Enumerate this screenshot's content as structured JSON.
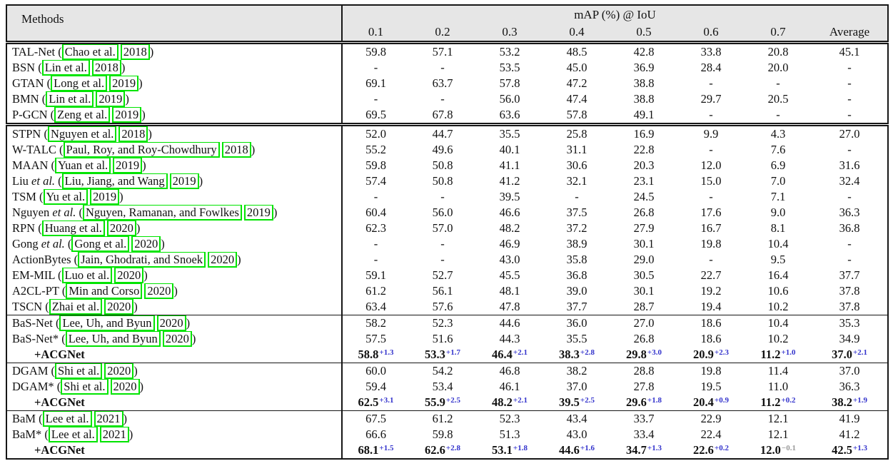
{
  "table": {
    "methods_label": "Methods",
    "group_header": "mAP (%) @ IoU",
    "columns": [
      "0.1",
      "0.2",
      "0.3",
      "0.4",
      "0.5",
      "0.6",
      "0.7",
      "Average"
    ],
    "colors": {
      "header_bg": "#e6e6e6",
      "citation_box": "#00e400",
      "sup_positive": "#3333cc",
      "sup_negative": "#999999",
      "border": "#161616"
    },
    "groups": [
      {
        "separator": "none",
        "rows": [
          {
            "parts": [
              {
                "t": "TAL-Net (",
                "s": "r"
              },
              {
                "t": "Chao et al.",
                "s": "box"
              },
              {
                "t": "2018",
                "s": "box"
              },
              {
                "t": ")",
                "s": "r"
              }
            ],
            "values": [
              "59.8",
              "57.1",
              "53.2",
              "48.5",
              "42.8",
              "33.8",
              "20.8",
              "45.1"
            ]
          },
          {
            "parts": [
              {
                "t": "BSN (",
                "s": "r"
              },
              {
                "t": "Lin et al.",
                "s": "box"
              },
              {
                "t": "2018",
                "s": "box"
              },
              {
                "t": ")",
                "s": "r"
              }
            ],
            "values": [
              "-",
              "-",
              "53.5",
              "45.0",
              "36.9",
              "28.4",
              "20.0",
              "-"
            ]
          },
          {
            "parts": [
              {
                "t": "GTAN (",
                "s": "r"
              },
              {
                "t": "Long et al.",
                "s": "box"
              },
              {
                "t": "2019",
                "s": "box"
              },
              {
                "t": ")",
                "s": "r"
              }
            ],
            "values": [
              "69.1",
              "63.7",
              "57.8",
              "47.2",
              "38.8",
              "-",
              "-",
              "-"
            ]
          },
          {
            "parts": [
              {
                "t": "BMN (",
                "s": "r"
              },
              {
                "t": "Lin et al.",
                "s": "box"
              },
              {
                "t": "2019",
                "s": "box"
              },
              {
                "t": ")",
                "s": "r"
              }
            ],
            "values": [
              "-",
              "-",
              "56.0",
              "47.4",
              "38.8",
              "29.7",
              "20.5",
              "-"
            ]
          },
          {
            "parts": [
              {
                "t": "P-GCN (",
                "s": "r"
              },
              {
                "t": "Zeng et al.",
                "s": "box"
              },
              {
                "t": "2019",
                "s": "box"
              },
              {
                "t": ")",
                "s": "r"
              }
            ],
            "values": [
              "69.5",
              "67.8",
              "63.6",
              "57.8",
              "49.1",
              "-",
              "-",
              "-"
            ]
          }
        ]
      },
      {
        "separator": "double",
        "rows": [
          {
            "parts": [
              {
                "t": "STPN (",
                "s": "r"
              },
              {
                "t": "Nguyen et al.",
                "s": "box"
              },
              {
                "t": "2018",
                "s": "box"
              },
              {
                "t": ")",
                "s": "r"
              }
            ],
            "values": [
              "52.0",
              "44.7",
              "35.5",
              "25.8",
              "16.9",
              "9.9",
              "4.3",
              "27.0"
            ]
          },
          {
            "parts": [
              {
                "t": "W-TALC (",
                "s": "r"
              },
              {
                "t": "Paul, Roy, and Roy-Chowdhury",
                "s": "box"
              },
              {
                "t": "2018",
                "s": "box"
              },
              {
                "t": ")",
                "s": "r"
              }
            ],
            "values": [
              "55.2",
              "49.6",
              "40.1",
              "31.1",
              "22.8",
              "-",
              "7.6",
              "-"
            ]
          },
          {
            "parts": [
              {
                "t": "MAAN (",
                "s": "r"
              },
              {
                "t": "Yuan et al.",
                "s": "box"
              },
              {
                "t": "2019",
                "s": "box"
              },
              {
                "t": ")",
                "s": "r"
              }
            ],
            "values": [
              "59.8",
              "50.8",
              "41.1",
              "30.6",
              "20.3",
              "12.0",
              "6.9",
              "31.6"
            ]
          },
          {
            "parts": [
              {
                "t": "Liu ",
                "s": "r"
              },
              {
                "t": "et al.",
                "s": "i"
              },
              {
                "t": " (",
                "s": "r"
              },
              {
                "t": "Liu, Jiang, and Wang",
                "s": "box"
              },
              {
                "t": "2019",
                "s": "box"
              },
              {
                "t": ")",
                "s": "r"
              }
            ],
            "values": [
              "57.4",
              "50.8",
              "41.2",
              "32.1",
              "23.1",
              "15.0",
              "7.0",
              "32.4"
            ]
          },
          {
            "parts": [
              {
                "t": "TSM (",
                "s": "r"
              },
              {
                "t": "Yu et al.",
                "s": "box"
              },
              {
                "t": "2019",
                "s": "box"
              },
              {
                "t": ")",
                "s": "r"
              }
            ],
            "values": [
              "-",
              "-",
              "39.5",
              "-",
              "24.5",
              "-",
              "7.1",
              "-"
            ]
          },
          {
            "parts": [
              {
                "t": "Nguyen ",
                "s": "r"
              },
              {
                "t": "et al.",
                "s": "i"
              },
              {
                "t": " (",
                "s": "r"
              },
              {
                "t": "Nguyen, Ramanan, and Fowlkes",
                "s": "box"
              },
              {
                "t": "2019",
                "s": "box"
              },
              {
                "t": ")",
                "s": "r"
              }
            ],
            "values": [
              "60.4",
              "56.0",
              "46.6",
              "37.5",
              "26.8",
              "17.6",
              "9.0",
              "36.3"
            ]
          },
          {
            "parts": [
              {
                "t": "RPN (",
                "s": "r"
              },
              {
                "t": "Huang et al.",
                "s": "box"
              },
              {
                "t": "2020",
                "s": "box"
              },
              {
                "t": ")",
                "s": "r"
              }
            ],
            "values": [
              "62.3",
              "57.0",
              "48.2",
              "37.2",
              "27.9",
              "16.7",
              "8.1",
              "36.8"
            ]
          },
          {
            "parts": [
              {
                "t": "Gong ",
                "s": "r"
              },
              {
                "t": "et al.",
                "s": "i"
              },
              {
                "t": " (",
                "s": "r"
              },
              {
                "t": "Gong et al.",
                "s": "box"
              },
              {
                "t": "2020",
                "s": "box"
              },
              {
                "t": ")",
                "s": "r"
              }
            ],
            "values": [
              "-",
              "-",
              "46.9",
              "38.9",
              "30.1",
              "19.8",
              "10.4",
              "-"
            ]
          },
          {
            "parts": [
              {
                "t": "ActionBytes (",
                "s": "r"
              },
              {
                "t": "Jain, Ghodrati, and Snoek",
                "s": "box"
              },
              {
                "t": "2020",
                "s": "box"
              },
              {
                "t": ")",
                "s": "r"
              }
            ],
            "values": [
              "-",
              "-",
              "43.0",
              "35.8",
              "29.0",
              "-",
              "9.5",
              "-"
            ]
          },
          {
            "parts": [
              {
                "t": "EM-MIL (",
                "s": "r"
              },
              {
                "t": "Luo et al.",
                "s": "box"
              },
              {
                "t": "2020",
                "s": "box"
              },
              {
                "t": ")",
                "s": "r"
              }
            ],
            "values": [
              "59.1",
              "52.7",
              "45.5",
              "36.8",
              "30.5",
              "22.7",
              "16.4",
              "37.7"
            ]
          },
          {
            "parts": [
              {
                "t": "A2CL-PT (",
                "s": "r"
              },
              {
                "t": "Min and Corso",
                "s": "box"
              },
              {
                "t": "2020",
                "s": "box"
              },
              {
                "t": ")",
                "s": "r"
              }
            ],
            "values": [
              "61.2",
              "56.1",
              "48.1",
              "39.0",
              "30.1",
              "19.2",
              "10.6",
              "37.8"
            ]
          },
          {
            "parts": [
              {
                "t": "TSCN (",
                "s": "r"
              },
              {
                "t": "Zhai et al.",
                "s": "box"
              },
              {
                "t": "2020",
                "s": "box"
              },
              {
                "t": ")",
                "s": "r"
              }
            ],
            "values": [
              "63.4",
              "57.6",
              "47.8",
              "37.7",
              "28.7",
              "19.4",
              "10.2",
              "37.8"
            ]
          }
        ]
      },
      {
        "separator": "single",
        "rows": [
          {
            "parts": [
              {
                "t": "BaS-Net (",
                "s": "r"
              },
              {
                "t": "Lee, Uh, and Byun",
                "s": "box"
              },
              {
                "t": "2020",
                "s": "box"
              },
              {
                "t": ")",
                "s": "r"
              }
            ],
            "values": [
              "58.2",
              "52.3",
              "44.6",
              "36.0",
              "27.0",
              "18.6",
              "10.4",
              "35.3"
            ]
          },
          {
            "parts": [
              {
                "t": "BaS-Net* (",
                "s": "r"
              },
              {
                "t": "Lee, Uh, and Byun",
                "s": "box"
              },
              {
                "t": "2020",
                "s": "box"
              },
              {
                "t": ")",
                "s": "r"
              }
            ],
            "values": [
              "57.5",
              "51.6",
              "44.3",
              "35.5",
              "26.8",
              "18.6",
              "10.2",
              "34.9"
            ]
          },
          {
            "parts": [
              {
                "t": "+ACGNet",
                "s": "b"
              }
            ],
            "bold": true,
            "indent": true,
            "values": [
              {
                "v": "58.8",
                "sup": "+1.3",
                "sc": "pos"
              },
              {
                "v": "53.3",
                "sup": "+1.7",
                "sc": "pos"
              },
              {
                "v": "46.4",
                "sup": "+2.1",
                "sc": "pos"
              },
              {
                "v": "38.3",
                "sup": "+2.8",
                "sc": "pos"
              },
              {
                "v": "29.8",
                "sup": "+3.0",
                "sc": "pos"
              },
              {
                "v": "20.9",
                "sup": "+2.3",
                "sc": "pos"
              },
              {
                "v": "11.2",
                "sup": "+1.0",
                "sc": "pos"
              },
              {
                "v": "37.0",
                "sup": "+2.1",
                "sc": "pos"
              }
            ]
          }
        ]
      },
      {
        "separator": "single",
        "rows": [
          {
            "parts": [
              {
                "t": "DGAM (",
                "s": "r"
              },
              {
                "t": "Shi et al.",
                "s": "box"
              },
              {
                "t": "2020",
                "s": "box"
              },
              {
                "t": ")",
                "s": "r"
              }
            ],
            "values": [
              "60.0",
              "54.2",
              "46.8",
              "38.2",
              "28.8",
              "19.8",
              "11.4",
              "37.0"
            ]
          },
          {
            "parts": [
              {
                "t": "DGAM* (",
                "s": "r"
              },
              {
                "t": "Shi et al.",
                "s": "box"
              },
              {
                "t": "2020",
                "s": "box"
              },
              {
                "t": ")",
                "s": "r"
              }
            ],
            "values": [
              "59.4",
              "53.4",
              "46.1",
              "37.0",
              "27.8",
              "19.5",
              "11.0",
              "36.3"
            ]
          },
          {
            "parts": [
              {
                "t": "+ACGNet",
                "s": "b"
              }
            ],
            "bold": true,
            "indent": true,
            "values": [
              {
                "v": "62.5",
                "sup": "+3.1",
                "sc": "pos"
              },
              {
                "v": "55.9",
                "sup": "+2.5",
                "sc": "pos"
              },
              {
                "v": "48.2",
                "sup": "+2.1",
                "sc": "pos"
              },
              {
                "v": "39.5",
                "sup": "+2.5",
                "sc": "pos"
              },
              {
                "v": "29.6",
                "sup": "+1.8",
                "sc": "pos"
              },
              {
                "v": "20.4",
                "sup": "+0.9",
                "sc": "pos"
              },
              {
                "v": "11.2",
                "sup": "+0.2",
                "sc": "pos"
              },
              {
                "v": "38.2",
                "sup": "+1.9",
                "sc": "pos"
              }
            ]
          }
        ]
      },
      {
        "separator": "single",
        "rows": [
          {
            "parts": [
              {
                "t": "BaM (",
                "s": "r"
              },
              {
                "t": "Lee et al.",
                "s": "box"
              },
              {
                "t": "2021",
                "s": "box"
              },
              {
                "t": ")",
                "s": "r"
              }
            ],
            "values": [
              "67.5",
              "61.2",
              "52.3",
              "43.4",
              "33.7",
              "22.9",
              "12.1",
              "41.9"
            ]
          },
          {
            "parts": [
              {
                "t": "BaM* (",
                "s": "r"
              },
              {
                "t": "Lee et al.",
                "s": "box"
              },
              {
                "t": "2021",
                "s": "box"
              },
              {
                "t": ")",
                "s": "r"
              }
            ],
            "values": [
              "66.6",
              "59.8",
              "51.3",
              "43.0",
              "33.4",
              "22.4",
              "12.1",
              "41.2"
            ]
          },
          {
            "parts": [
              {
                "t": "+ACGNet",
                "s": "b"
              }
            ],
            "bold": true,
            "indent": true,
            "values": [
              {
                "v": "68.1",
                "sup": "+1.5",
                "sc": "pos"
              },
              {
                "v": "62.6",
                "sup": "+2.8",
                "sc": "pos"
              },
              {
                "v": "53.1",
                "sup": "+1.8",
                "sc": "pos"
              },
              {
                "v": "44.6",
                "sup": "+1.6",
                "sc": "pos"
              },
              {
                "v": "34.7",
                "sup": "+1.3",
                "sc": "pos"
              },
              {
                "v": "22.6",
                "sup": "+0.2",
                "sc": "pos"
              },
              {
                "v": "12.0",
                "sup": "−0.1",
                "sc": "neg"
              },
              {
                "v": "42.5",
                "sup": "+1.3",
                "sc": "pos"
              }
            ]
          }
        ]
      }
    ]
  }
}
